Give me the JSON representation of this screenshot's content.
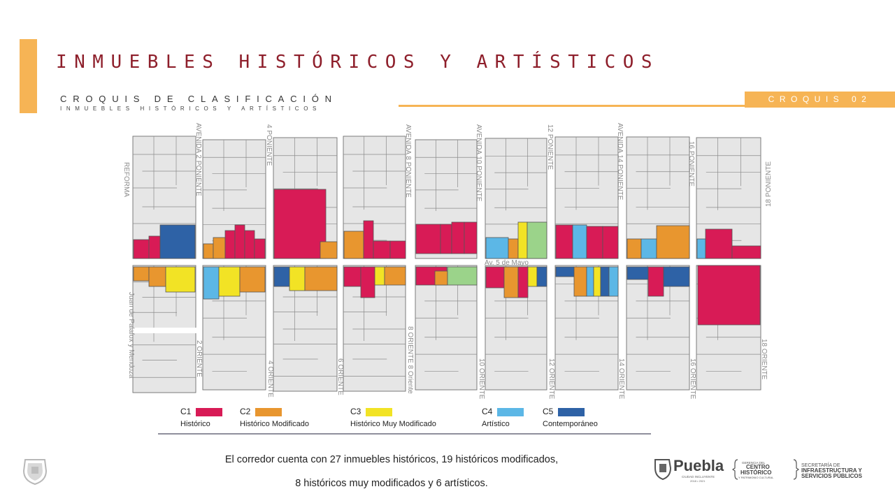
{
  "header": {
    "title": "INMUEBLES HISTÓRICOS Y ARTÍSTICOS",
    "subtitle": "CROQUIS DE CLASIFICACIÓN",
    "subtitle2": "INMUEBLES HISTÓRICOS Y ARTÍSTICOS",
    "tag": "CROQUIS 02"
  },
  "colors": {
    "c1": "#d81b56",
    "c2": "#e8962f",
    "c3": "#f2e325",
    "c4": "#5cb7e6",
    "c5": "#2e62a6",
    "green": "#9bd38a",
    "block": "#e6e6e6",
    "accent": "#f6b455",
    "title": "#8e1f2b"
  },
  "map": {
    "avenue": "Av. 5 de Mayo",
    "streets_north": [
      "REFORMA",
      "AVENIDA 2 PONIENTE",
      "4 PONIENTE",
      "AVENIDA 8 PONIENTE",
      "AVENIDA 10 PONIENTE",
      "12 PONIENTE",
      "AVENIDA 14 PONIENTE",
      "16 PONIENTE",
      "18 PONIENTE"
    ],
    "streets_south": [
      "Juan de Palafox y Mendoza",
      "2 ORIENTE",
      "4 ORIENTE",
      "6 ORIENTE",
      "8 ORIENTE 8 Oriente",
      "10 ORIENTE",
      "12 ORIENTE",
      "14 ORIENTE",
      "16 ORIENTE",
      "18 ORIENTE"
    ]
  },
  "legend": [
    {
      "code": "C1",
      "label": "Histórico",
      "color": "#d81b56"
    },
    {
      "code": "C2",
      "label": "Histórico Modificado",
      "color": "#e8962f"
    },
    {
      "code": "C3",
      "label": "Histórico Muy Modificado",
      "color": "#f2e325"
    },
    {
      "code": "C4",
      "label": "Artístico",
      "color": "#5cb7e6"
    },
    {
      "code": "C5",
      "label": "Contemporáneo",
      "color": "#2e62a6"
    }
  ],
  "summary": {
    "line1": "El corredor cuenta con 27 inmuebles históricos, 19 históricos modificados,",
    "line2": "8 históricos muy modificados y 6 artísticos."
  },
  "logo": {
    "brand": "Puebla",
    "brand_sub": "CIUDAD INCLUYENTE",
    "years": "2018 • 2021",
    "centro_top": "GERENCIA DEL",
    "centro_mid1": "CENTRO",
    "centro_mid2": "HISTÓRICO",
    "centro_bottom": "Y PATRIMONIO CULTURAL",
    "secretaria_top": "SECRETARÍA DE",
    "secretaria_mid": "INFRAESTRUCTURA Y",
    "secretaria_bottom": "SERVICIOS PÚBLICOS",
    "seal_icon": "city-seal-icon"
  }
}
